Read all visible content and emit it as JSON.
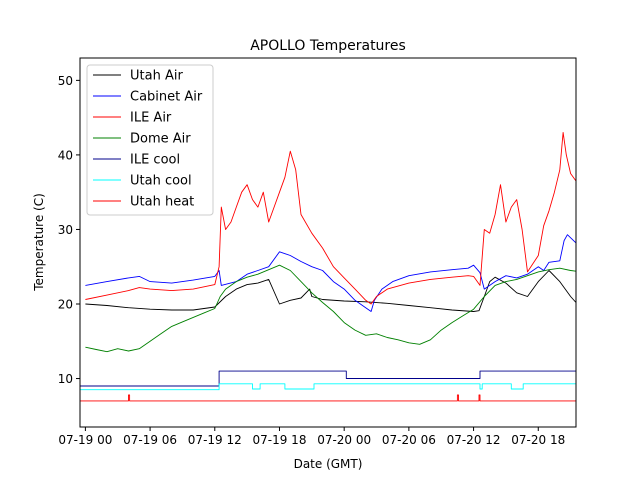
{
  "chart_data": {
    "type": "line",
    "title": "APOLLO Temperatures",
    "xlabel": "Date (GMT)",
    "ylabel": "Temperature (C)",
    "x_unit": "hours since 07-19 00:00",
    "xlim": [
      -0.5,
      45.5
    ],
    "ylim": [
      3.5,
      53
    ],
    "yticks": [
      10,
      20,
      30,
      40,
      50
    ],
    "xticks": [
      {
        "value": 0,
        "label": "07-19 00"
      },
      {
        "value": 6,
        "label": "07-19 06"
      },
      {
        "value": 12,
        "label": "07-19 12"
      },
      {
        "value": 18,
        "label": "07-19 18"
      },
      {
        "value": 24,
        "label": "07-20 00"
      },
      {
        "value": 30,
        "label": "07-20 06"
      },
      {
        "value": 36,
        "label": "07-20 12"
      },
      {
        "value": 42,
        "label": "07-20 18"
      }
    ],
    "legend_position": "top-left",
    "series": [
      {
        "name": "Utah Air",
        "color": "#000000",
        "points": [
          [
            0,
            20
          ],
          [
            2,
            19.8
          ],
          [
            4,
            19.5
          ],
          [
            6,
            19.3
          ],
          [
            8,
            19.2
          ],
          [
            10,
            19.2
          ],
          [
            12,
            19.6
          ],
          [
            13,
            21
          ],
          [
            14,
            22
          ],
          [
            15,
            22.6
          ],
          [
            16,
            22.8
          ],
          [
            17,
            23.3
          ],
          [
            18,
            20
          ],
          [
            19,
            20.5
          ],
          [
            20,
            20.8
          ],
          [
            20.8,
            22
          ],
          [
            21,
            21
          ],
          [
            22,
            20.6
          ],
          [
            24,
            20.4
          ],
          [
            26,
            20.3
          ],
          [
            28,
            20.1
          ],
          [
            30,
            19.8
          ],
          [
            32,
            19.5
          ],
          [
            34,
            19.2
          ],
          [
            36,
            19
          ],
          [
            36.5,
            19.1
          ],
          [
            37,
            21
          ],
          [
            37.5,
            23
          ],
          [
            38,
            23.6
          ],
          [
            39,
            22.8
          ],
          [
            40,
            21.5
          ],
          [
            41,
            21
          ],
          [
            42,
            23
          ],
          [
            43,
            24.5
          ],
          [
            44,
            23
          ],
          [
            45,
            21
          ],
          [
            45.5,
            20.2
          ]
        ]
      },
      {
        "name": "Cabinet Air",
        "color": "#0000ff",
        "points": [
          [
            0,
            22.5
          ],
          [
            2,
            23
          ],
          [
            4,
            23.5
          ],
          [
            5,
            23.7
          ],
          [
            6,
            23
          ],
          [
            8,
            22.8
          ],
          [
            10,
            23.2
          ],
          [
            12,
            23.7
          ],
          [
            12.4,
            24.5
          ],
          [
            12.6,
            22.5
          ],
          [
            14,
            23
          ],
          [
            15,
            24
          ],
          [
            16,
            24.5
          ],
          [
            17,
            25
          ],
          [
            18,
            27
          ],
          [
            19,
            26.5
          ],
          [
            20,
            25.7
          ],
          [
            21,
            25
          ],
          [
            22,
            24.5
          ],
          [
            23,
            23
          ],
          [
            24,
            22
          ],
          [
            25,
            20.5
          ],
          [
            26,
            19.5
          ],
          [
            26.5,
            19
          ],
          [
            26.8,
            20.5
          ],
          [
            27.5,
            22
          ],
          [
            28.5,
            23
          ],
          [
            30,
            23.8
          ],
          [
            32,
            24.3
          ],
          [
            34,
            24.6
          ],
          [
            35.5,
            24.8
          ],
          [
            36,
            25.2
          ],
          [
            36.6,
            24.2
          ],
          [
            37,
            22
          ],
          [
            38,
            23
          ],
          [
            39,
            23.8
          ],
          [
            40,
            23.5
          ],
          [
            41,
            24
          ],
          [
            42,
            25
          ],
          [
            42.5,
            24.5
          ],
          [
            43,
            25.6
          ],
          [
            44,
            25.8
          ],
          [
            44.4,
            28.5
          ],
          [
            44.7,
            29.3
          ],
          [
            45.5,
            28.2
          ]
        ]
      },
      {
        "name": "ILE Air",
        "color": "#ff0000",
        "points": [
          [
            0,
            20.6
          ],
          [
            2,
            21.2
          ],
          [
            4,
            21.8
          ],
          [
            5,
            22.2
          ],
          [
            6,
            22
          ],
          [
            8,
            21.8
          ],
          [
            10,
            22
          ],
          [
            12,
            22.6
          ],
          [
            12.4,
            25
          ],
          [
            12.6,
            33
          ],
          [
            13,
            30
          ],
          [
            13.5,
            31
          ],
          [
            14,
            33
          ],
          [
            14.5,
            35
          ],
          [
            15,
            36
          ],
          [
            15.5,
            34
          ],
          [
            16,
            33
          ],
          [
            16.5,
            35
          ],
          [
            17,
            31
          ],
          [
            17.5,
            33
          ],
          [
            18,
            35
          ],
          [
            18.5,
            37
          ],
          [
            19,
            40.5
          ],
          [
            19.5,
            38
          ],
          [
            20,
            32
          ],
          [
            21,
            29.5
          ],
          [
            22,
            27.5
          ],
          [
            23,
            25
          ],
          [
            24,
            23.5
          ],
          [
            25,
            22
          ],
          [
            26,
            20.5
          ],
          [
            26.5,
            20
          ],
          [
            27,
            21
          ],
          [
            28,
            22
          ],
          [
            30,
            22.8
          ],
          [
            32,
            23.3
          ],
          [
            34,
            23.6
          ],
          [
            35.5,
            23.8
          ],
          [
            36,
            23.7
          ],
          [
            36.6,
            22.5
          ],
          [
            37,
            30
          ],
          [
            37.5,
            29.5
          ],
          [
            38,
            32
          ],
          [
            38.5,
            36
          ],
          [
            39,
            31
          ],
          [
            39.5,
            33
          ],
          [
            40,
            34
          ],
          [
            40.5,
            30
          ],
          [
            41,
            24.3
          ],
          [
            42,
            26.5
          ],
          [
            42.5,
            30.5
          ],
          [
            43,
            32.5
          ],
          [
            43.5,
            35
          ],
          [
            44,
            38
          ],
          [
            44.3,
            43
          ],
          [
            44.6,
            40
          ],
          [
            45,
            37.5
          ],
          [
            45.5,
            36.5
          ]
        ]
      },
      {
        "name": "Dome Air",
        "color": "#008000",
        "points": [
          [
            0,
            14.2
          ],
          [
            1,
            13.9
          ],
          [
            2,
            13.6
          ],
          [
            3,
            14
          ],
          [
            4,
            13.7
          ],
          [
            5,
            14
          ],
          [
            6,
            15
          ],
          [
            7,
            16
          ],
          [
            8,
            17
          ],
          [
            9,
            17.6
          ],
          [
            10,
            18.2
          ],
          [
            11,
            18.8
          ],
          [
            12,
            19.4
          ],
          [
            12.5,
            21
          ],
          [
            13,
            22
          ],
          [
            14,
            23
          ],
          [
            15,
            23.6
          ],
          [
            16,
            24
          ],
          [
            17,
            24.6
          ],
          [
            18,
            25.2
          ],
          [
            19,
            24.5
          ],
          [
            20,
            23
          ],
          [
            21,
            21.5
          ],
          [
            22,
            20.2
          ],
          [
            23,
            19
          ],
          [
            24,
            17.5
          ],
          [
            25,
            16.5
          ],
          [
            26,
            15.8
          ],
          [
            27,
            16
          ],
          [
            28,
            15.5
          ],
          [
            29,
            15.2
          ],
          [
            30,
            14.8
          ],
          [
            31,
            14.6
          ],
          [
            32,
            15.2
          ],
          [
            33,
            16.5
          ],
          [
            34,
            17.5
          ],
          [
            35,
            18.4
          ],
          [
            36,
            19.3
          ],
          [
            37,
            21
          ],
          [
            38,
            22.5
          ],
          [
            39,
            23
          ],
          [
            40,
            23.3
          ],
          [
            41,
            23.8
          ],
          [
            42,
            24.3
          ],
          [
            43,
            24.6
          ],
          [
            44,
            24.8
          ],
          [
            45,
            24.5
          ],
          [
            45.5,
            24.4
          ]
        ]
      },
      {
        "name": "ILE cool",
        "color": "#00008b",
        "points": [
          [
            -0.5,
            9
          ],
          [
            12.4,
            9
          ],
          [
            12.4,
            11
          ],
          [
            24.2,
            11
          ],
          [
            24.2,
            10
          ],
          [
            36.6,
            10
          ],
          [
            36.6,
            11
          ],
          [
            45.5,
            11
          ]
        ]
      },
      {
        "name": "Utah cool",
        "color": "#00ffff",
        "points": [
          [
            -0.5,
            8.5
          ],
          [
            12.4,
            8.5
          ],
          [
            12.4,
            9.3
          ],
          [
            15.5,
            9.3
          ],
          [
            15.5,
            8.6
          ],
          [
            16.2,
            8.6
          ],
          [
            16.2,
            9.3
          ],
          [
            18.5,
            9.3
          ],
          [
            18.5,
            8.6
          ],
          [
            21.2,
            8.6
          ],
          [
            21.2,
            9.3
          ],
          [
            36.6,
            9.3
          ],
          [
            36.6,
            8.6
          ],
          [
            36.8,
            8.6
          ],
          [
            36.8,
            9.3
          ],
          [
            39.5,
            9.3
          ],
          [
            39.5,
            8.6
          ],
          [
            40.6,
            8.6
          ],
          [
            40.6,
            9.3
          ],
          [
            45.5,
            9.3
          ]
        ]
      },
      {
        "name": "Utah heat",
        "color": "#ff0000",
        "points": [
          [
            -0.5,
            7
          ],
          [
            4,
            7
          ],
          [
            4,
            7.8
          ],
          [
            4.1,
            7.8
          ],
          [
            4.1,
            7
          ],
          [
            34.5,
            7
          ],
          [
            34.5,
            7.8
          ],
          [
            34.6,
            7.8
          ],
          [
            34.6,
            7
          ],
          [
            36.5,
            7
          ],
          [
            36.5,
            7.8
          ],
          [
            36.6,
            7.8
          ],
          [
            36.6,
            7
          ],
          [
            45.5,
            7
          ]
        ]
      }
    ]
  }
}
